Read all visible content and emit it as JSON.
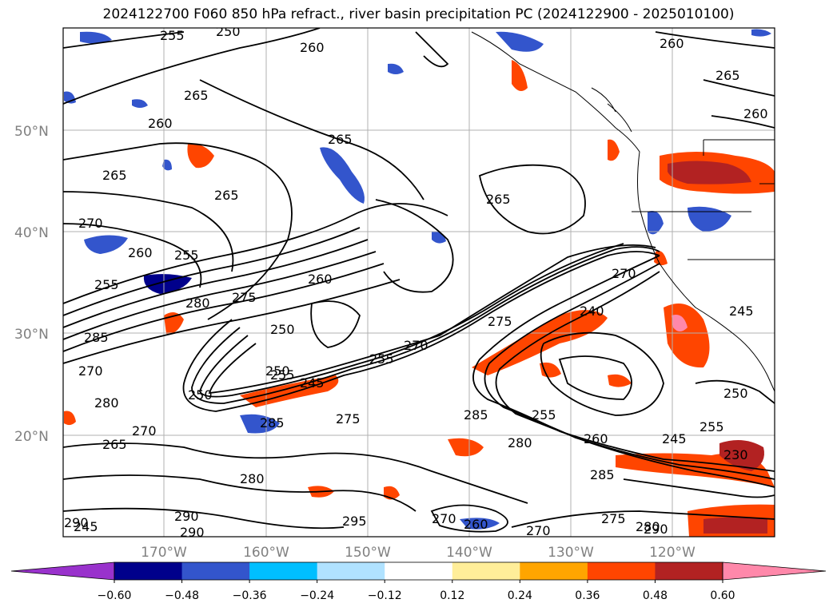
{
  "title": "2024122700 F060 850 hPa refract., river basin precipitation PC (2024122900 - 2025010100)",
  "lat_labels": [
    "50°N",
    "40°N",
    "30°N",
    "20°N"
  ],
  "lon_labels": [
    "170°W",
    "160°W",
    "150°W",
    "140°W",
    "130°W",
    "120°W"
  ],
  "colorbar": {
    "colors": [
      "#9932CC",
      "#00008B",
      "#3355CC",
      "#00BFFF",
      "#B0E2FF",
      "#FFFFFF",
      "#FFEE99",
      "#FFA500",
      "#FF4500",
      "#B22222",
      "#FF88AA"
    ],
    "ticks": [
      "−0.60",
      "−0.48",
      "−0.36",
      "−0.24",
      "−0.12",
      "0.12",
      "0.24",
      "0.36",
      "0.48",
      "0.60"
    ]
  },
  "contour_labels": [
    "255",
    "250",
    "260",
    "260",
    "265",
    "265",
    "260",
    "260",
    "265",
    "265",
    "265",
    "270",
    "260",
    "255",
    "255",
    "260",
    "275",
    "280",
    "285",
    "265",
    "250",
    "255",
    "245",
    "250",
    "255",
    "270",
    "275",
    "270",
    "240",
    "270",
    "280",
    "270",
    "265",
    "285",
    "285",
    "275",
    "255",
    "280",
    "260",
    "285",
    "245",
    "250",
    "255",
    "295",
    "290",
    "290",
    "275",
    "290",
    "280",
    "245",
    "270",
    "260",
    "290",
    "270",
    "280",
    "230",
    "245",
    "250"
  ]
}
